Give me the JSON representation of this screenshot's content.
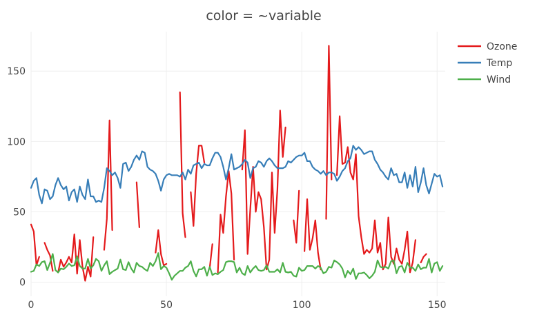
{
  "chart_data": {
    "type": "line",
    "title": "color = ~variable",
    "xlabel": "",
    "ylabel": "",
    "xlim": [
      0,
      153
    ],
    "ylim": [
      -10,
      178
    ],
    "xticks": [
      0,
      50,
      100,
      150
    ],
    "yticks": [
      0,
      50,
      100,
      150
    ],
    "xtick_labels": [
      "0",
      "50",
      "100",
      "150"
    ],
    "ytick_labels": [
      "0",
      "50",
      "100",
      "150"
    ],
    "grid": true,
    "legend_position": "top-right",
    "series": [
      {
        "name": "Ozone",
        "color": "#e41a1c",
        "values": [
          41,
          36,
          12,
          18,
          null,
          28,
          23,
          19,
          8,
          null,
          7,
          16,
          11,
          14,
          18,
          14,
          34,
          6,
          30,
          11,
          1,
          11,
          4,
          32,
          null,
          null,
          null,
          23,
          45,
          115,
          37,
          null,
          null,
          null,
          null,
          null,
          null,
          29,
          null,
          71,
          39,
          null,
          null,
          23,
          null,
          null,
          21,
          37,
          20,
          12,
          13,
          null,
          null,
          null,
          null,
          135,
          49,
          32,
          null,
          64,
          40,
          77,
          97,
          97,
          85,
          null,
          10,
          27,
          null,
          7,
          48,
          35,
          61,
          79,
          63,
          16,
          null,
          null,
          80,
          108,
          20,
          52,
          82,
          50,
          64,
          59,
          39,
          9,
          16,
          78,
          35,
          66,
          122,
          89,
          110,
          null,
          null,
          44,
          28,
          65,
          null,
          22,
          59,
          23,
          31,
          44,
          21,
          9,
          null,
          45,
          168,
          73,
          null,
          76,
          118,
          84,
          85,
          96,
          78,
          73,
          91,
          47,
          32,
          20,
          23,
          21,
          24,
          44,
          21,
          28,
          9,
          13,
          46,
          18,
          13,
          24,
          16,
          13,
          23,
          36,
          7,
          14,
          30,
          null,
          14,
          18,
          20
        ]
      },
      {
        "name": "Temp",
        "color": "#377eb8",
        "values": [
          67,
          72,
          74,
          62,
          56,
          66,
          65,
          59,
          61,
          69,
          74,
          69,
          66,
          68,
          58,
          64,
          66,
          57,
          68,
          62,
          59,
          73,
          61,
          61,
          57,
          58,
          57,
          67,
          81,
          79,
          76,
          78,
          74,
          67,
          84,
          85,
          79,
          82,
          87,
          90,
          87,
          93,
          92,
          82,
          80,
          79,
          77,
          72,
          65,
          73,
          76,
          77,
          76,
          76,
          76,
          75,
          78,
          73,
          80,
          77,
          83,
          84,
          85,
          81,
          84,
          83,
          83,
          88,
          92,
          92,
          89,
          82,
          73,
          81,
          91,
          80,
          81,
          82,
          84,
          87,
          85,
          74,
          81,
          82,
          86,
          85,
          82,
          86,
          88,
          86,
          83,
          81,
          81,
          81,
          82,
          86,
          85,
          87,
          89,
          90,
          90,
          92,
          86,
          86,
          82,
          80,
          79,
          77,
          79,
          76,
          78,
          78,
          77,
          72,
          75,
          79,
          81,
          86,
          88,
          97,
          94,
          96,
          94,
          91,
          92,
          93,
          93,
          87,
          84,
          80,
          78,
          75,
          73,
          81,
          76,
          77,
          71,
          71,
          78,
          67,
          76,
          68,
          82,
          64,
          71,
          81,
          69,
          63,
          70,
          77,
          75,
          76,
          68
        ]
      },
      {
        "name": "Wind",
        "color": "#4daf4a",
        "values": [
          7.4,
          8,
          12.6,
          11.5,
          14.3,
          14.9,
          8.6,
          13.8,
          20.1,
          8.6,
          6.9,
          9.7,
          9.2,
          10.9,
          13.2,
          11.5,
          12,
          18.4,
          11.5,
          9.7,
          9.7,
          16.6,
          9.7,
          12,
          16.6,
          14.9,
          8,
          12,
          14.9,
          5.7,
          7.4,
          8.6,
          9.7,
          16.1,
          9.2,
          8.6,
          14.3,
          9.7,
          6.9,
          13.8,
          11.5,
          10.9,
          9.2,
          8,
          13.8,
          11.5,
          14.9,
          20.7,
          9.2,
          11.5,
          10.3,
          6.3,
          1.7,
          4.6,
          6.3,
          8,
          8,
          10.3,
          11.5,
          14.9,
          8,
          4.1,
          9.2,
          9.2,
          10.9,
          4.6,
          10.9,
          5.1,
          6.3,
          5.7,
          7.4,
          8.6,
          14.3,
          14.9,
          14.9,
          14.3,
          6.9,
          10.3,
          6.3,
          5.1,
          11.5,
          6.9,
          9.7,
          11.5,
          8.6,
          8,
          8.6,
          12,
          7.4,
          7.4,
          7.4,
          9.2,
          6.9,
          13.8,
          7.4,
          6.9,
          7.4,
          4.6,
          4,
          10.3,
          8,
          8.6,
          11.5,
          11.5,
          11.5,
          9.7,
          11.5,
          10.3,
          6.3,
          7.4,
          10.9,
          10.3,
          15.5,
          14.3,
          12.6,
          9.7,
          3.4,
          8,
          5.7,
          9.7,
          2.3,
          6.3,
          6.3,
          6.9,
          5.1,
          2.8,
          4.6,
          7.4,
          15.5,
          10.9,
          10.3,
          10.9,
          9.7,
          14.9,
          15.5,
          6.3,
          10.9,
          11.5,
          6.9,
          13.8,
          10.3,
          10.3,
          8,
          12.6,
          9.2,
          10.3,
          10.3,
          16.6,
          6.9,
          13.2,
          14.3,
          8,
          11.5
        ]
      }
    ]
  }
}
